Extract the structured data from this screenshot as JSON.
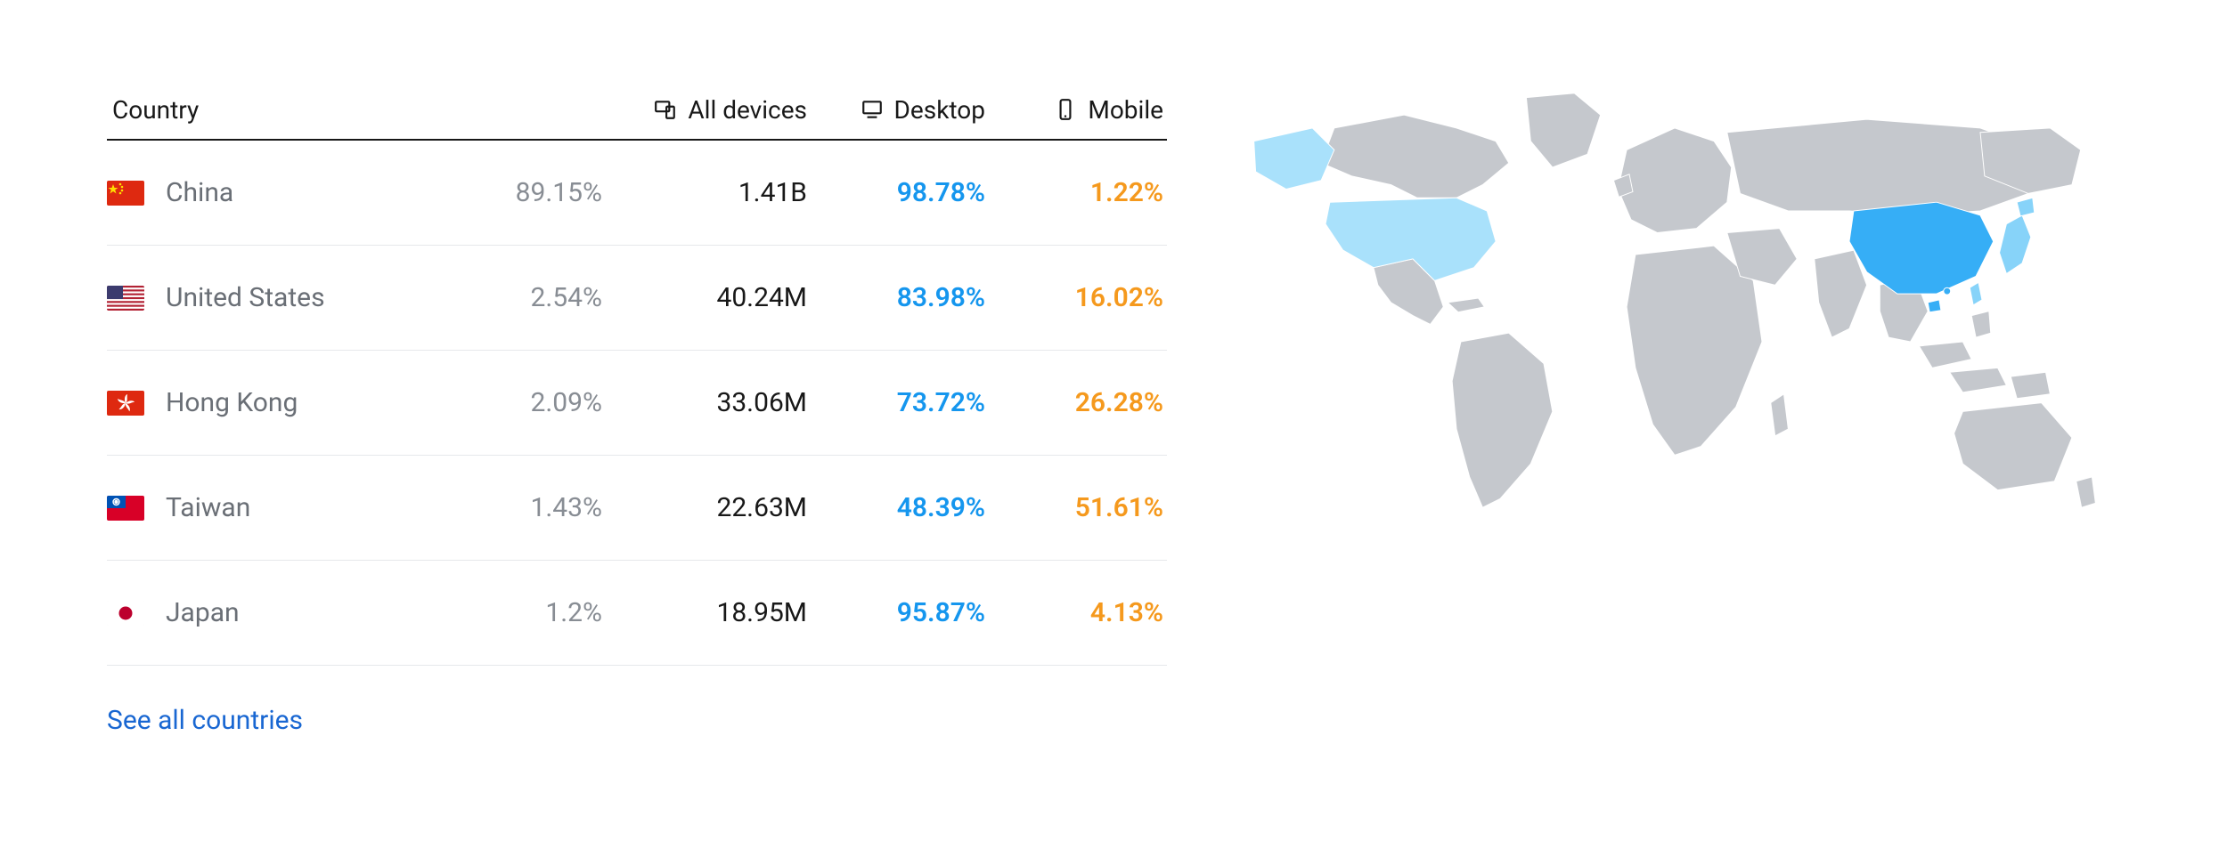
{
  "colors": {
    "text_primary": "#181818",
    "text_muted": "#6a6f76",
    "text_share": "#888d94",
    "desktop_metric": "#1596ee",
    "mobile_metric": "#f5991d",
    "link": "#1967d2",
    "row_border": "#e6e8eb",
    "header_border": "#181818",
    "background": "#ffffff"
  },
  "table": {
    "columns": {
      "country": "Country",
      "all_devices": "All devices",
      "desktop": "Desktop",
      "mobile": "Mobile"
    },
    "header_icons": {
      "all_devices": "devices-icon",
      "desktop": "desktop-icon",
      "mobile": "mobile-icon"
    },
    "rows": [
      {
        "country": "China",
        "flag": "cn",
        "share": "89.15%",
        "all": "1.41B",
        "desktop": "98.78%",
        "mobile": "1.22%"
      },
      {
        "country": "United States",
        "flag": "us",
        "share": "2.54%",
        "all": "40.24M",
        "desktop": "83.98%",
        "mobile": "16.02%"
      },
      {
        "country": "Hong Kong",
        "flag": "hk",
        "share": "2.09%",
        "all": "33.06M",
        "desktop": "73.72%",
        "mobile": "26.28%"
      },
      {
        "country": "Taiwan",
        "flag": "tw",
        "share": "1.43%",
        "all": "22.63M",
        "desktop": "48.39%",
        "mobile": "51.61%"
      },
      {
        "country": "Japan",
        "flag": "jp",
        "share": "1.2%",
        "all": "18.95M",
        "desktop": "95.87%",
        "mobile": "4.13%"
      }
    ],
    "see_all_label": "See all countries"
  },
  "map": {
    "base_fill": "#c5c8cd",
    "base_stroke": "#ffffff",
    "highlights": {
      "cn": "#36aef6",
      "us": "#a9e1fb",
      "hk": "#36aef6",
      "tw": "#87d3f9",
      "jp": "#87d3f9"
    }
  }
}
